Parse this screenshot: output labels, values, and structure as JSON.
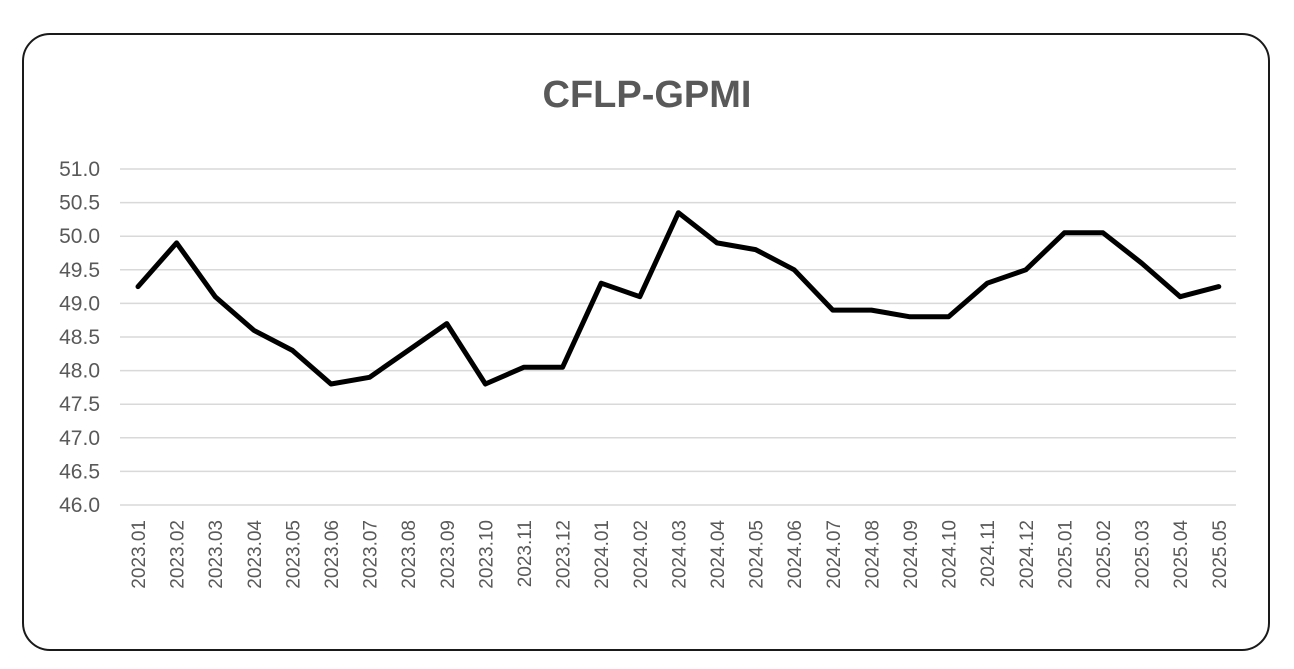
{
  "chart_data": {
    "type": "line",
    "title": "CFLP-GPMI",
    "xlabel": "",
    "ylabel": "",
    "ylim": [
      46.0,
      51.0
    ],
    "ytick_step": 0.5,
    "grid": true,
    "legend": "none",
    "line_color": "#000000",
    "categories": [
      "2023.01",
      "2023.02",
      "2023.03",
      "2023.04",
      "2023.05",
      "2023.06",
      "2023.07",
      "2023.08",
      "2023.09",
      "2023.10",
      "2023.11",
      "2023.12",
      "2024.01",
      "2024.02",
      "2024.03",
      "2024.04",
      "2024.05",
      "2024.06",
      "2024.07",
      "2024.08",
      "2024.09",
      "2024.10",
      "2024.11",
      "2024.12",
      "2025.01",
      "2025.02",
      "2025.03",
      "2025.04",
      "2025.05"
    ],
    "series": [
      {
        "values": [
          49.25,
          49.9,
          49.1,
          48.6,
          48.3,
          47.8,
          47.9,
          48.3,
          48.7,
          47.8,
          48.05,
          48.05,
          49.3,
          49.1,
          50.35,
          49.9,
          49.8,
          49.5,
          48.9,
          48.9,
          48.8,
          48.8,
          49.3,
          49.5,
          50.05,
          50.05,
          49.6,
          49.1,
          49.25
        ]
      }
    ]
  }
}
